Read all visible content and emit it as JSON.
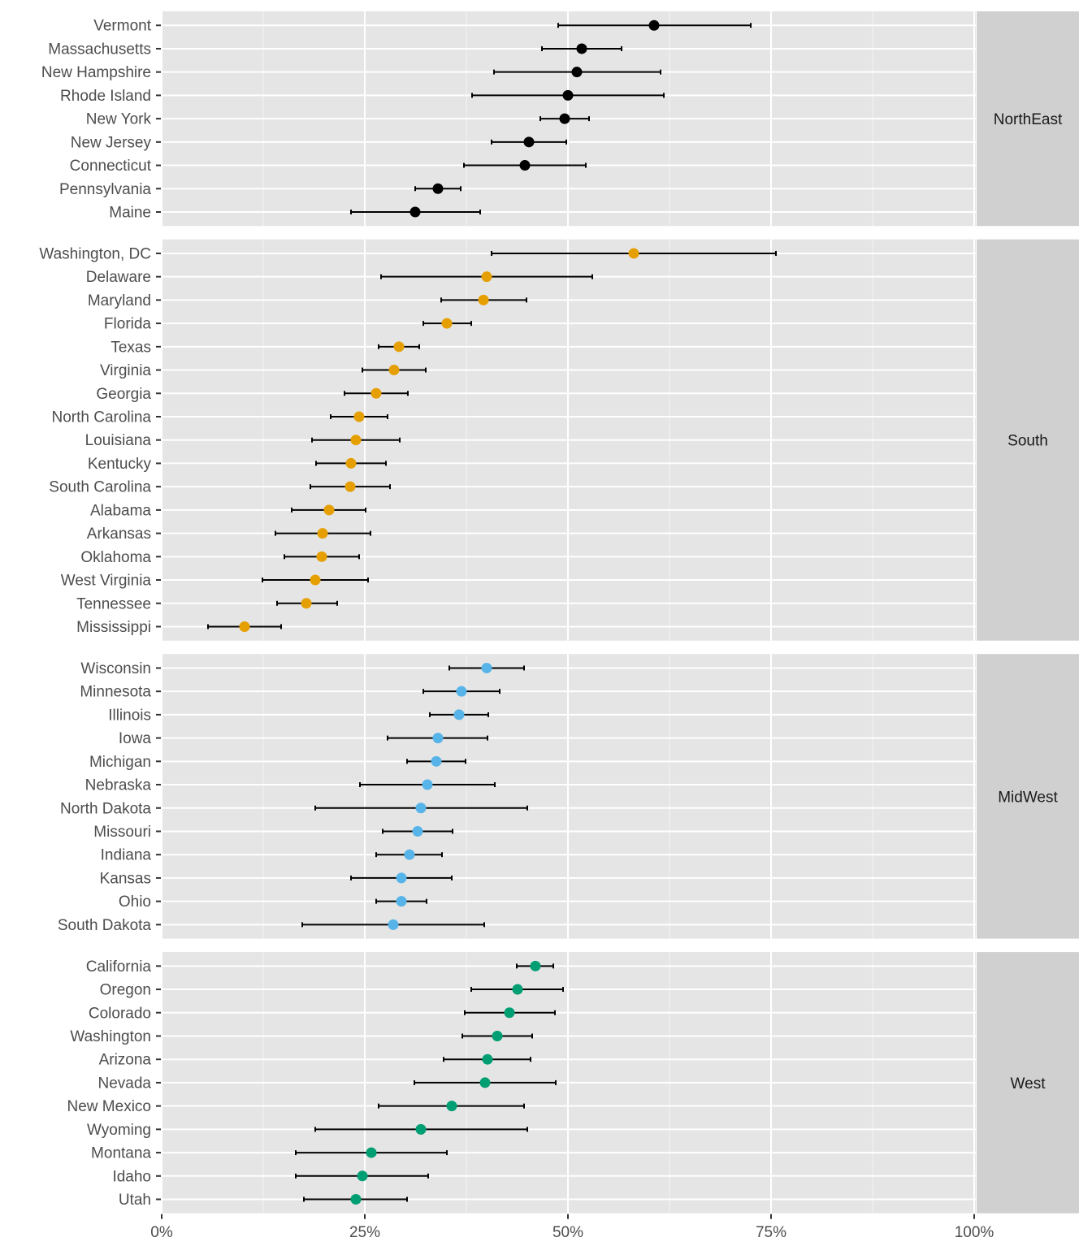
{
  "chart_data": {
    "type": "scatter",
    "subtype": "dot plot with error bars, faceted by region",
    "xlabel": "",
    "ylabel": "",
    "xlim": [
      0,
      1.12
    ],
    "x_ticks": [
      0,
      0.25,
      0.5,
      0.75,
      1.0
    ],
    "x_tick_labels": [
      "0%",
      "25%",
      "50%",
      "75%",
      "100%"
    ],
    "grid": true,
    "legend": "none",
    "facets": [
      {
        "name": "NorthEast",
        "color": "#000000",
        "rows": [
          {
            "label": "Vermont",
            "value": 60.6,
            "low": 48.8,
            "high": 72.5
          },
          {
            "label": "Massachusetts",
            "value": 51.7,
            "low": 46.8,
            "high": 56.6
          },
          {
            "label": "New Hampshire",
            "value": 51.1,
            "low": 40.9,
            "high": 61.4
          },
          {
            "label": "Rhode Island",
            "value": 50.0,
            "low": 38.2,
            "high": 61.8
          },
          {
            "label": "New York",
            "value": 49.6,
            "low": 46.6,
            "high": 52.6
          },
          {
            "label": "New Jersey",
            "value": 45.2,
            "low": 40.6,
            "high": 49.8
          },
          {
            "label": "Connecticut",
            "value": 44.7,
            "low": 37.2,
            "high": 52.2
          },
          {
            "label": "Pennsylvania",
            "value": 34.0,
            "low": 31.2,
            "high": 36.8
          },
          {
            "label": "Maine",
            "value": 31.2,
            "low": 23.3,
            "high": 39.2
          }
        ]
      },
      {
        "name": "South",
        "color": "#E69F00",
        "rows": [
          {
            "label": "Washington, DC",
            "value": 58.1,
            "low": 40.6,
            "high": 75.6
          },
          {
            "label": "Delaware",
            "value": 40.0,
            "low": 27.0,
            "high": 53.0
          },
          {
            "label": "Maryland",
            "value": 39.6,
            "low": 34.4,
            "high": 44.9
          },
          {
            "label": "Florida",
            "value": 35.1,
            "low": 32.2,
            "high": 38.1
          },
          {
            "label": "Texas",
            "value": 29.2,
            "low": 26.7,
            "high": 31.7
          },
          {
            "label": "Virginia",
            "value": 28.6,
            "low": 24.7,
            "high": 32.5
          },
          {
            "label": "Georgia",
            "value": 26.4,
            "low": 22.5,
            "high": 30.3
          },
          {
            "label": "North Carolina",
            "value": 24.3,
            "low": 20.8,
            "high": 27.8
          },
          {
            "label": "Louisiana",
            "value": 23.9,
            "low": 18.5,
            "high": 29.3
          },
          {
            "label": "Kentucky",
            "value": 23.3,
            "low": 19.0,
            "high": 27.6
          },
          {
            "label": "South Carolina",
            "value": 23.2,
            "low": 18.3,
            "high": 28.1
          },
          {
            "label": "Alabama",
            "value": 20.6,
            "low": 16.0,
            "high": 25.1
          },
          {
            "label": "Arkansas",
            "value": 19.8,
            "low": 14.0,
            "high": 25.7
          },
          {
            "label": "Oklahoma",
            "value": 19.7,
            "low": 15.1,
            "high": 24.3
          },
          {
            "label": "West Virginia",
            "value": 18.9,
            "low": 12.4,
            "high": 25.4
          },
          {
            "label": "Tennessee",
            "value": 17.8,
            "low": 14.2,
            "high": 21.6
          },
          {
            "label": "Mississippi",
            "value": 10.2,
            "low": 5.7,
            "high": 14.7
          }
        ]
      },
      {
        "name": "MidWest",
        "color": "#56B4E9",
        "rows": [
          {
            "label": "Wisconsin",
            "value": 40.0,
            "low": 35.4,
            "high": 44.6
          },
          {
            "label": "Minnesota",
            "value": 36.9,
            "low": 32.2,
            "high": 41.6
          },
          {
            "label": "Illinois",
            "value": 36.6,
            "low": 33.0,
            "high": 40.2
          },
          {
            "label": "Iowa",
            "value": 34.0,
            "low": 27.8,
            "high": 40.1
          },
          {
            "label": "Michigan",
            "value": 33.8,
            "low": 30.2,
            "high": 37.4
          },
          {
            "label": "Nebraska",
            "value": 32.7,
            "low": 24.4,
            "high": 41.0
          },
          {
            "label": "North Dakota",
            "value": 31.9,
            "low": 18.9,
            "high": 45.0
          },
          {
            "label": "Missouri",
            "value": 31.5,
            "low": 27.2,
            "high": 35.8
          },
          {
            "label": "Indiana",
            "value": 30.5,
            "low": 26.4,
            "high": 34.5
          },
          {
            "label": "Kansas",
            "value": 29.5,
            "low": 23.3,
            "high": 35.7
          },
          {
            "label": "Ohio",
            "value": 29.5,
            "low": 26.4,
            "high": 32.6
          },
          {
            "label": "South Dakota",
            "value": 28.5,
            "low": 17.3,
            "high": 39.7
          }
        ]
      },
      {
        "name": "West",
        "color": "#009E73",
        "rows": [
          {
            "label": "California",
            "value": 46.0,
            "low": 43.7,
            "high": 48.2
          },
          {
            "label": "Oregon",
            "value": 43.8,
            "low": 38.1,
            "high": 49.4
          },
          {
            "label": "Colorado",
            "value": 42.8,
            "low": 37.3,
            "high": 48.4
          },
          {
            "label": "Washington",
            "value": 41.3,
            "low": 37.0,
            "high": 45.6
          },
          {
            "label": "Arizona",
            "value": 40.1,
            "low": 34.7,
            "high": 45.4
          },
          {
            "label": "Nevada",
            "value": 39.8,
            "low": 31.1,
            "high": 48.5
          },
          {
            "label": "New Mexico",
            "value": 35.7,
            "low": 26.7,
            "high": 44.6
          },
          {
            "label": "Wyoming",
            "value": 31.9,
            "low": 18.9,
            "high": 45.0
          },
          {
            "label": "Montana",
            "value": 25.8,
            "low": 16.5,
            "high": 35.1
          },
          {
            "label": "Idaho",
            "value": 24.7,
            "low": 16.5,
            "high": 32.8
          },
          {
            "label": "Utah",
            "value": 23.9,
            "low": 17.5,
            "high": 30.2
          }
        ]
      }
    ]
  }
}
